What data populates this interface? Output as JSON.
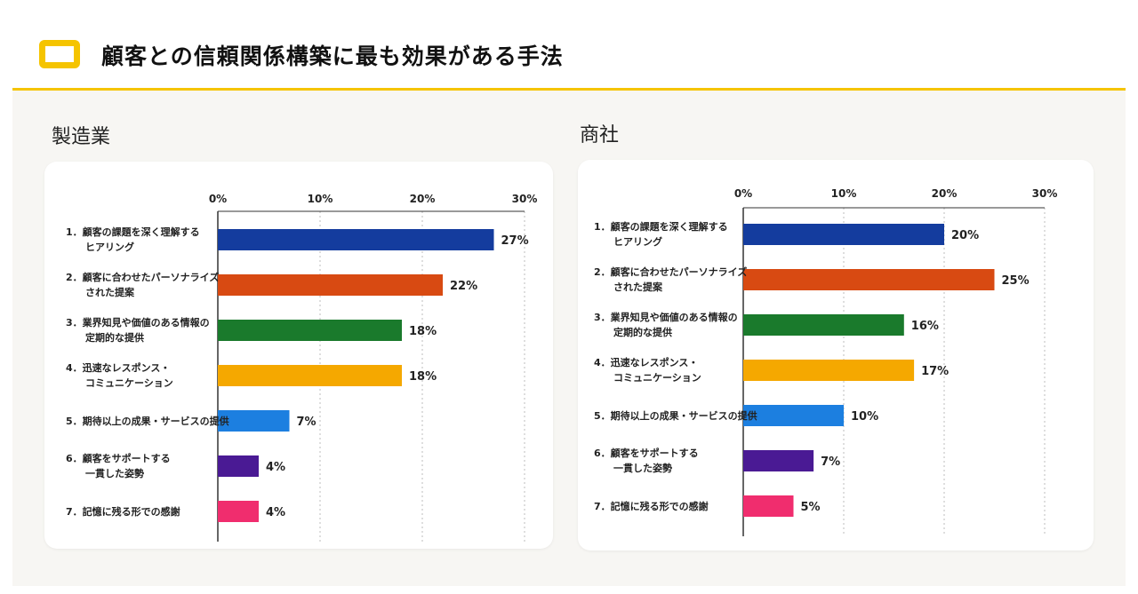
{
  "header": {
    "title": "顧客との信頼関係構築に最も効果がある手法",
    "accent_color": "#f5c400",
    "icon": "speech-bubble-icon"
  },
  "chart_data": [
    {
      "type": "bar",
      "orientation": "horizontal",
      "title": "製造業",
      "xlim": [
        0,
        30
      ],
      "ticks": [
        "0%",
        "10%",
        "20%",
        "30%"
      ],
      "categories": [
        [
          "1．顧客の課題を深く理解する",
          "ヒアリング"
        ],
        [
          "2．顧客に合わせたパーソナライズ",
          "された提案"
        ],
        [
          "3．業界知見や価値のある情報の",
          "定期的な提供"
        ],
        [
          "4．迅速なレスポンス・",
          "コミュニケーション"
        ],
        [
          "5．期待以上の成果・サービスの提供"
        ],
        [
          "6．顧客をサポートする",
          "一貫した姿勢"
        ],
        [
          "7．記憶に残る形での感謝"
        ]
      ],
      "values": [
        27,
        22,
        18,
        18,
        7,
        4,
        4
      ],
      "value_labels": [
        "27%",
        "22%",
        "18%",
        "18%",
        "7%",
        "4%",
        "4%"
      ],
      "colors": [
        "#143c9e",
        "#d84a12",
        "#1a7a2c",
        "#f5a800",
        "#1c7fe0",
        "#4a1a94",
        "#f02d6e"
      ],
      "grid": true
    },
    {
      "type": "bar",
      "orientation": "horizontal",
      "title": "商社",
      "xlim": [
        0,
        30
      ],
      "ticks": [
        "0%",
        "10%",
        "20%",
        "30%"
      ],
      "categories": [
        [
          "1．顧客の課題を深く理解する",
          "ヒアリング"
        ],
        [
          "2．顧客に合わせたパーソナライズ",
          "された提案"
        ],
        [
          "3．業界知見や価値のある情報の",
          "定期的な提供"
        ],
        [
          "4．迅速なレスポンス・",
          "コミュニケーション"
        ],
        [
          "5．期待以上の成果・サービスの提供"
        ],
        [
          "6．顧客をサポートする",
          "一貫した姿勢"
        ],
        [
          "7．記憶に残る形での感謝"
        ]
      ],
      "values": [
        20,
        25,
        16,
        17,
        10,
        7,
        5
      ],
      "value_labels": [
        "20%",
        "25%",
        "16%",
        "17%",
        "10%",
        "7%",
        "5%"
      ],
      "colors": [
        "#143c9e",
        "#d84a12",
        "#1a7a2c",
        "#f5a800",
        "#1c7fe0",
        "#4a1a94",
        "#f02d6e"
      ],
      "grid": true
    }
  ]
}
